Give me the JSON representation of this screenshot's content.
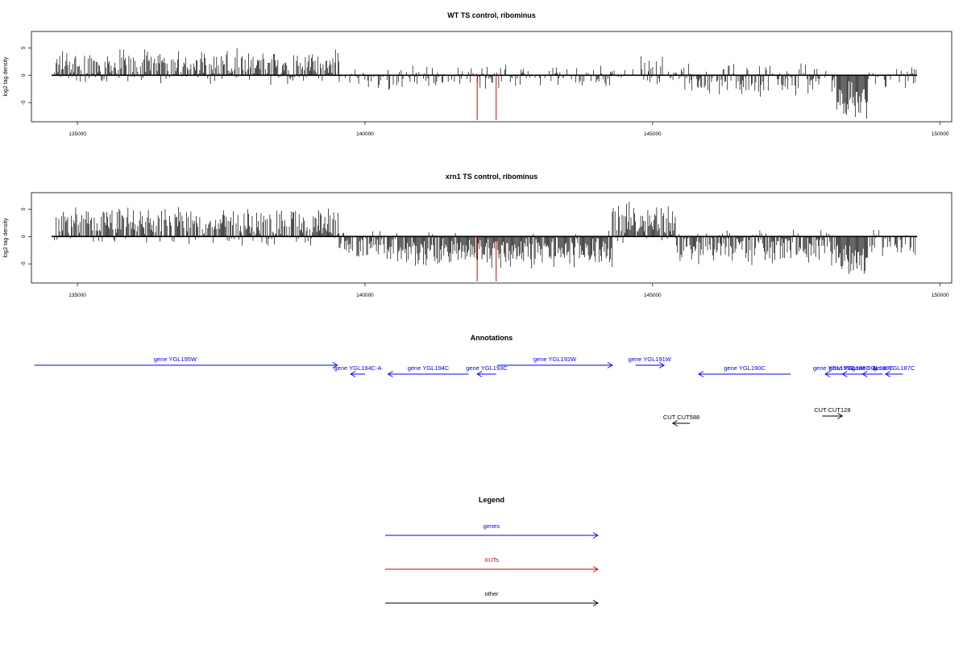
{
  "chart_data": [
    {
      "type": "bar",
      "title": "WT TS control, ribominus",
      "ylabel": "log2 tag density",
      "xlabel": "",
      "xlim": [
        134200,
        150200
      ],
      "ylim": [
        -8.5,
        8
      ],
      "xticks": [
        "135000",
        "140000",
        "145000",
        "150000"
      ],
      "xtick_values": [
        135000,
        140000,
        145000,
        150000
      ],
      "yticks": [
        "5",
        "0",
        "-5"
      ],
      "ytick_values": [
        5,
        0,
        -5
      ],
      "baseline": [
        134550,
        149600
      ],
      "bar_color": "#000000",
      "highlight_color": "#d40000",
      "segments": [
        {
          "start": 134600,
          "end": 139550,
          "mean": 1.6,
          "spread": 3.6,
          "density": 0.9
        },
        {
          "start": 139550,
          "end": 144300,
          "mean": -0.4,
          "spread": 2.4,
          "density": 0.55
        },
        {
          "start": 144300,
          "end": 144800,
          "mean": 0.2,
          "spread": 1.2,
          "density": 0.4
        },
        {
          "start": 144800,
          "end": 145200,
          "mean": 1.6,
          "spread": 3.4,
          "density": 0.8
        },
        {
          "start": 145200,
          "end": 145500,
          "mean": -0.2,
          "spread": 1.0,
          "density": 0.4
        },
        {
          "start": 145500,
          "end": 148200,
          "mean": -1.0,
          "spread": 3.8,
          "density": 0.65
        },
        {
          "start": 148200,
          "end": 148750,
          "mean": -4.5,
          "spread": 4.0,
          "density": 1.0
        },
        {
          "start": 148750,
          "end": 149600,
          "mean": -0.6,
          "spread": 2.2,
          "density": 0.5
        }
      ],
      "highlights": [
        {
          "x": 141950,
          "y": -8.2
        },
        {
          "x": 142280,
          "y": -8.2
        }
      ]
    },
    {
      "type": "bar",
      "title": "xrn1 TS control, ribominus",
      "ylabel": "log2 tag density",
      "xlabel": "",
      "xlim": [
        134200,
        150200
      ],
      "ylim": [
        -8.5,
        8
      ],
      "xticks": [
        "135000",
        "140000",
        "145000",
        "150000"
      ],
      "xtick_values": [
        135000,
        140000,
        145000,
        150000
      ],
      "yticks": [
        "5",
        "0",
        "-5"
      ],
      "ytick_values": [
        5,
        0,
        -5
      ],
      "baseline": [
        134550,
        149600
      ],
      "bar_color": "#000000",
      "highlight_color": "#d40000",
      "segments": [
        {
          "start": 134600,
          "end": 139550,
          "mean": 1.8,
          "spread": 4.0,
          "density": 0.95
        },
        {
          "start": 139550,
          "end": 140400,
          "mean": -1.8,
          "spread": 3.0,
          "density": 0.8
        },
        {
          "start": 140400,
          "end": 144300,
          "mean": -2.6,
          "spread": 3.8,
          "density": 1.0
        },
        {
          "start": 144300,
          "end": 145400,
          "mean": 2.6,
          "spread": 4.2,
          "density": 1.0
        },
        {
          "start": 145400,
          "end": 148200,
          "mean": -2.0,
          "spread": 3.6,
          "density": 0.85
        },
        {
          "start": 148200,
          "end": 148750,
          "mean": -4.0,
          "spread": 4.2,
          "density": 1.0
        },
        {
          "start": 148750,
          "end": 149600,
          "mean": -1.2,
          "spread": 2.6,
          "density": 0.6
        }
      ],
      "highlights": [
        {
          "x": 141950,
          "y": -8.2
        },
        {
          "x": 142280,
          "y": -8.2
        }
      ]
    }
  ],
  "annotations": {
    "title": "Annotations",
    "xlim": [
      134200,
      150200
    ],
    "genes_color": "#0000ff",
    "other_color": "#000000",
    "features": [
      {
        "label": "gene YGL195W",
        "start": 134250,
        "end": 139520,
        "strand": "+",
        "lane": 0,
        "kind": "gene"
      },
      {
        "label": "gene YGL194C-A",
        "start": 139750,
        "end": 140000,
        "strand": "-",
        "lane": 1,
        "kind": "gene"
      },
      {
        "label": "gene YGL194C",
        "start": 140400,
        "end": 141800,
        "strand": "-",
        "lane": 1,
        "kind": "gene"
      },
      {
        "label": "gene YGL193C",
        "start": 141950,
        "end": 142280,
        "strand": "-",
        "lane": 1,
        "kind": "gene"
      },
      {
        "label": "gene YGL192W",
        "start": 142300,
        "end": 144300,
        "strand": "+",
        "lane": 0,
        "kind": "gene"
      },
      {
        "label": "gene YGL191W",
        "start": 144700,
        "end": 145200,
        "strand": "+",
        "lane": 0,
        "kind": "gene"
      },
      {
        "label": "gene YGL190C",
        "start": 145800,
        "end": 147400,
        "strand": "-",
        "lane": 1,
        "kind": "gene"
      },
      {
        "label": "gene YGL189C",
        "start": 148000,
        "end": 148300,
        "strand": "-",
        "lane": 1,
        "kind": "gene"
      },
      {
        "label": "gene YGL188C-A",
        "start": 148300,
        "end": 148650,
        "strand": "-",
        "lane": 1,
        "kind": "gene"
      },
      {
        "label": "gene YGL188C",
        "start": 148650,
        "end": 149000,
        "strand": "-",
        "lane": 1,
        "kind": "gene"
      },
      {
        "label": "gene YGL187C",
        "start": 149050,
        "end": 149350,
        "strand": "-",
        "lane": 1,
        "kind": "gene"
      },
      {
        "label": "CUT CUT588",
        "start": 145350,
        "end": 145650,
        "strand": "-",
        "lane": 2,
        "kind": "other"
      },
      {
        "label": "CUT CUT128",
        "start": 147950,
        "end": 148300,
        "strand": "+",
        "lane": 3,
        "kind": "other"
      }
    ]
  },
  "legend": {
    "title": "Legend",
    "items": [
      {
        "label": "genes",
        "color": "#0000ff"
      },
      {
        "label": "XUTs",
        "color": "#d40000"
      },
      {
        "label": "other",
        "color": "#000000"
      }
    ]
  }
}
